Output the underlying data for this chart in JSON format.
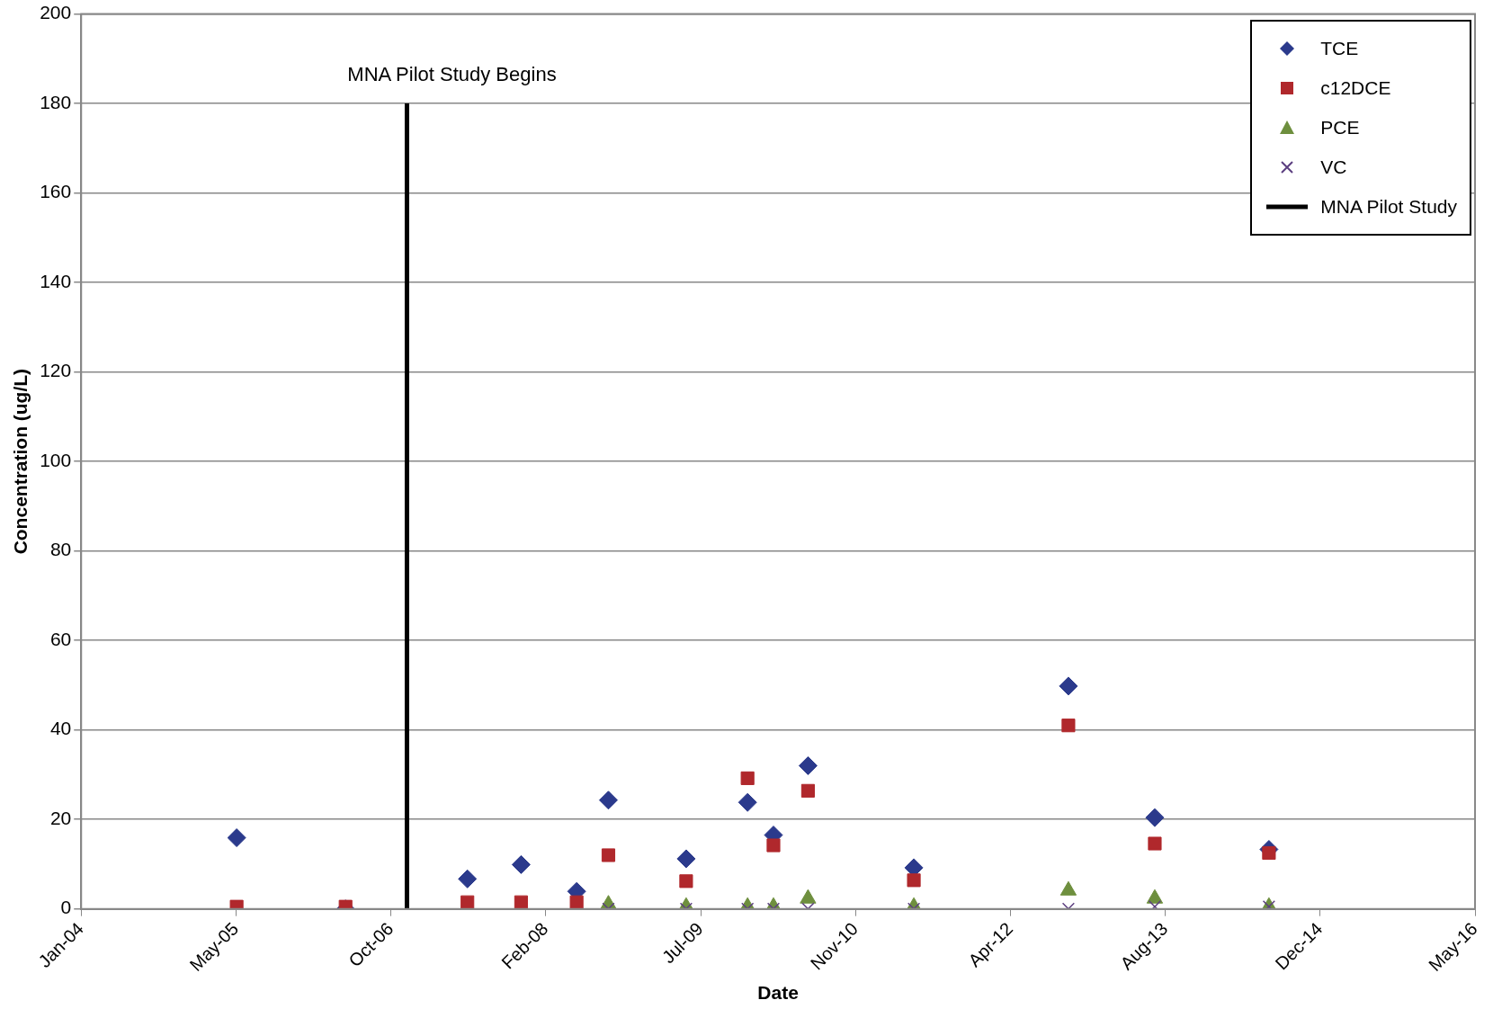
{
  "chart_data": {
    "type": "scatter",
    "xlabel": "Date",
    "ylabel": "Concentration (ug/L)",
    "x": [
      "2005-05-20",
      "2006-05-08",
      "2007-06-07",
      "2007-11-28",
      "2008-05-26",
      "2008-09-06",
      "2009-05-16",
      "2009-12-01",
      "2010-02-23",
      "2010-06-15",
      "2011-05-24",
      "2012-10-06",
      "2013-07-13",
      "2014-07-18"
    ],
    "series": [
      {
        "name": "TCE",
        "color": "#2b3a8c",
        "marker": "diamond",
        "values": [
          15.9,
          0,
          6.7,
          9.9,
          3.9,
          24.3,
          11.2,
          23.8,
          16.5,
          32,
          9.2,
          49.8,
          20.4,
          13.3
        ]
      },
      {
        "name": "c12DCE",
        "color": "#b0282c",
        "marker": "square",
        "values": [
          0.5,
          0.5,
          1.5,
          1.5,
          1.5,
          12,
          6.2,
          29.2,
          14.2,
          26.4,
          6.4,
          41,
          14.6,
          12.5
        ]
      },
      {
        "name": "PCE",
        "color": "#6e8f3e",
        "marker": "triangle",
        "values": [
          null,
          null,
          null,
          null,
          null,
          1,
          0.5,
          0.5,
          0.5,
          2.3,
          0.5,
          4.1,
          2.3,
          0.5
        ]
      },
      {
        "name": "VC",
        "color": "#5c3f80",
        "marker": "cross",
        "values": [
          null,
          null,
          null,
          null,
          null,
          0,
          0,
          0,
          0,
          0,
          0,
          0,
          0.5,
          0.5
        ]
      },
      {
        "name": "MNA Pilot Study",
        "type": "line",
        "color": "#000000",
        "marker": "none",
        "line_style": "solid",
        "x": [
          "2006-11-23",
          "2006-11-23"
        ],
        "values": [
          0,
          180
        ]
      }
    ],
    "xlim": [
      "2004-01-02",
      "2016-05-16"
    ],
    "xticks": [
      {
        "value": "2004-01-02",
        "label": "Jan-04"
      },
      {
        "value": "2005-05-18",
        "label": "May-05"
      },
      {
        "value": "2006-10-02",
        "label": "Oct-06"
      },
      {
        "value": "2008-02-16",
        "label": "Feb-08"
      },
      {
        "value": "2009-07-02",
        "label": "Jul-09"
      },
      {
        "value": "2010-11-16",
        "label": "Nov-10"
      },
      {
        "value": "2012-04-01",
        "label": "Apr-12"
      },
      {
        "value": "2013-08-16",
        "label": "Aug-13"
      },
      {
        "value": "2014-12-31",
        "label": "Dec-14"
      },
      {
        "value": "2016-05-16",
        "label": "May-16"
      }
    ],
    "ylim": [
      0,
      200
    ],
    "yticks": [
      0,
      20,
      40,
      60,
      80,
      100,
      120,
      140,
      160,
      180,
      200
    ],
    "grid": "y",
    "legend": "top right",
    "annotations": [
      "MNA Pilot Study Begins"
    ]
  }
}
